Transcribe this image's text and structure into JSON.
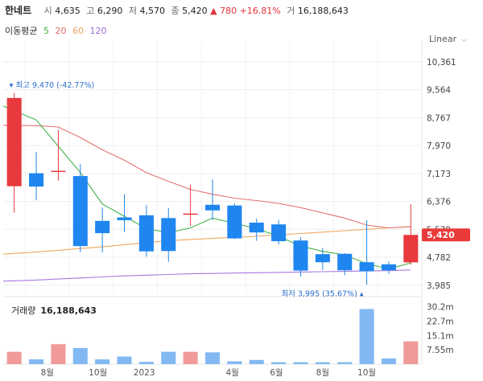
{
  "header": {
    "name": "한네트",
    "open_label": "시",
    "open": "4,635",
    "high_label": "고",
    "high": "6,290",
    "low_label": "저",
    "low": "4,570",
    "close_label": "종",
    "close": "5,420",
    "change": "▲ 780",
    "change_pct": "+16.81%",
    "volume_label": "거",
    "volume": "16,188,643"
  },
  "moving_average": {
    "label": "이동평균",
    "periods": [
      "5",
      "20",
      "60",
      "120"
    ]
  },
  "scale_selector": {
    "label": "Linear"
  },
  "colors": {
    "up": "#e8393f",
    "down": "#1f86f0",
    "ma5": "#42b349",
    "ma20": "#e57373",
    "ma60": "#f0a860",
    "ma120": "#a779e0",
    "vol_up": "#f09a9a",
    "vol_down": "#82b9f3",
    "vol_last_down": "#7fb6f3"
  },
  "chart_data": {
    "type": "candlestick",
    "price_axis": {
      "ticks": [
        10361,
        9564,
        8767,
        7970,
        7173,
        6376,
        5579,
        4782,
        3985
      ],
      "tick_labels": [
        "10,361",
        "9,564",
        "8,767",
        "7,970",
        "7,173",
        "6,376",
        "5,579",
        "4,782",
        "3,985"
      ],
      "range": [
        3750,
        10750
      ],
      "scale": "linear"
    },
    "x_tick_labels": [
      "8월",
      "10월",
      "2023",
      "4월",
      "6월",
      "8월",
      "10월"
    ],
    "candles": [
      {
        "o": 6810,
        "h": 9470,
        "l": 6050,
        "c": 9330
      },
      {
        "o": 7180,
        "h": 7790,
        "l": 6410,
        "c": 6800
      },
      {
        "o": 7220,
        "h": 8420,
        "l": 6970,
        "c": 7250
      },
      {
        "o": 7100,
        "h": 7440,
        "l": 4930,
        "c": 5100
      },
      {
        "o": 5820,
        "h": 6200,
        "l": 4920,
        "c": 5470
      },
      {
        "o": 5920,
        "h": 6580,
        "l": 5500,
        "c": 5840
      },
      {
        "o": 5980,
        "h": 6280,
        "l": 4800,
        "c": 4950
      },
      {
        "o": 5900,
        "h": 6190,
        "l": 4650,
        "c": 4960
      },
      {
        "o": 6020,
        "h": 6850,
        "l": 5680,
        "c": 6030
      },
      {
        "o": 6280,
        "h": 7000,
        "l": 5850,
        "c": 6120
      },
      {
        "o": 6260,
        "h": 6320,
        "l": 5300,
        "c": 5320
      },
      {
        "o": 5770,
        "h": 5890,
        "l": 5250,
        "c": 5490
      },
      {
        "o": 5720,
        "h": 5850,
        "l": 5150,
        "c": 5240
      },
      {
        "o": 5260,
        "h": 5350,
        "l": 4230,
        "c": 4400
      },
      {
        "o": 4870,
        "h": 5050,
        "l": 4420,
        "c": 4640
      },
      {
        "o": 4880,
        "h": 4900,
        "l": 4270,
        "c": 4410
      },
      {
        "o": 4640,
        "h": 5840,
        "l": 3995,
        "c": 4380
      },
      {
        "o": 4580,
        "h": 4660,
        "l": 4310,
        "c": 4410
      },
      {
        "o": 4635,
        "h": 6290,
        "l": 4570,
        "c": 5420
      }
    ],
    "ma5": [
      9100,
      8700,
      7950,
      7200,
      6300,
      5950,
      5600,
      5480,
      5620,
      5900,
      5750,
      5600,
      5380,
      5100,
      4950,
      4850,
      4600,
      4450,
      4620
    ],
    "ma20": [
      8550,
      8540,
      8500,
      8200,
      7850,
      7550,
      7200,
      6950,
      6720,
      6580,
      6470,
      6400,
      6320,
      6200,
      6050,
      5900,
      5700,
      5620,
      5650
    ],
    "ma60": [
      4870,
      4930,
      4980,
      5030,
      5080,
      5140,
      5200,
      5250,
      5290,
      5320,
      5350,
      5380,
      5420,
      5460,
      5500,
      5540,
      5580,
      5620,
      5660
    ],
    "ma120": [
      4100,
      4130,
      4160,
      4190,
      4220,
      4250,
      4270,
      4290,
      4310,
      4320,
      4330,
      4340,
      4350,
      4360,
      4370,
      4380,
      4390,
      4400,
      4420
    ],
    "high_marker": {
      "label": "최고 9,470 (-42.77%)",
      "value": 9470
    },
    "low_marker": {
      "label": "최저 3,995 (35.67%)",
      "value": 3995
    },
    "current_price_label": "5,420",
    "volume": {
      "title": "거래량",
      "total": "16,188,643",
      "axis_labels": [
        "30.2m",
        "22.7m",
        "15.1m",
        "7.55m"
      ],
      "axis_values": [
        30.2,
        22.7,
        15.1,
        7.55
      ],
      "max": 33,
      "bars": [
        6.5,
        2.5,
        10.5,
        8.5,
        2.5,
        4.0,
        1.2,
        6.5,
        6.5,
        6.2,
        1.5,
        2.2,
        1.0,
        1.0,
        1.0,
        1.0,
        29.0,
        3.0,
        12.0
      ]
    }
  }
}
